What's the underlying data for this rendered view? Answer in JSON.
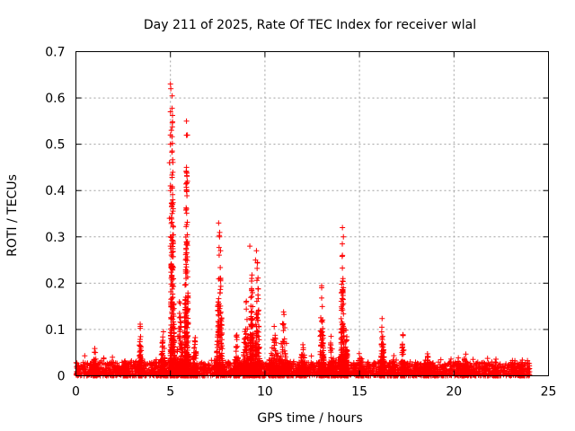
{
  "chart_data": {
    "type": "scatter",
    "title": "Day 211 of 2025, Rate Of TEC Index for receiver wlal",
    "xlabel": "GPS time / hours",
    "ylabel": "ROTI / TECUs",
    "xlim": [
      0,
      25
    ],
    "ylim": [
      0,
      0.7
    ],
    "xticks": [
      0,
      5,
      10,
      15,
      20,
      25
    ],
    "xtick_labels": [
      "0",
      "5",
      "10",
      "15",
      "20",
      "25"
    ],
    "yticks": [
      0,
      0.1,
      0.2,
      0.3,
      0.4,
      0.5,
      0.6,
      0.7
    ],
    "ytick_labels": [
      "0",
      "0.1",
      "0.2",
      "0.3",
      "0.4",
      "0.5",
      "0.6",
      "0.7"
    ],
    "grid": true,
    "marker": "+",
    "marker_color": "#ff0000",
    "baseline_noise": {
      "x_range": [
        0,
        24
      ],
      "y_range": [
        0,
        0.03
      ]
    },
    "bursts": [
      {
        "x": 1.0,
        "width": 0.12,
        "peak": 0.07
      },
      {
        "x": 2.6,
        "width": 0.1,
        "peak": 0.05
      },
      {
        "x": 3.4,
        "width": 0.1,
        "peak": 0.12
      },
      {
        "x": 4.6,
        "width": 0.15,
        "peak": 0.12
      },
      {
        "x": 5.1,
        "width": 0.12,
        "peak": 0.64
      },
      {
        "x": 5.5,
        "width": 0.2,
        "peak": 0.2
      },
      {
        "x": 5.85,
        "width": 0.12,
        "peak": 0.55
      },
      {
        "x": 6.3,
        "width": 0.15,
        "peak": 0.1
      },
      {
        "x": 7.6,
        "width": 0.18,
        "peak": 0.33
      },
      {
        "x": 8.5,
        "width": 0.15,
        "peak": 0.1
      },
      {
        "x": 9.0,
        "width": 0.18,
        "peak": 0.18
      },
      {
        "x": 9.3,
        "width": 0.12,
        "peak": 0.28
      },
      {
        "x": 9.6,
        "width": 0.15,
        "peak": 0.27
      },
      {
        "x": 10.5,
        "width": 0.3,
        "peak": 0.12
      },
      {
        "x": 11.0,
        "width": 0.3,
        "peak": 0.15
      },
      {
        "x": 12.0,
        "width": 0.2,
        "peak": 0.09
      },
      {
        "x": 13.0,
        "width": 0.15,
        "peak": 0.2
      },
      {
        "x": 13.5,
        "width": 0.2,
        "peak": 0.09
      },
      {
        "x": 14.1,
        "width": 0.12,
        "peak": 0.32
      },
      {
        "x": 14.3,
        "width": 0.1,
        "peak": 0.14
      },
      {
        "x": 15.0,
        "width": 0.2,
        "peak": 0.06
      },
      {
        "x": 16.2,
        "width": 0.15,
        "peak": 0.13
      },
      {
        "x": 16.8,
        "width": 0.15,
        "peak": 0.05
      },
      {
        "x": 17.3,
        "width": 0.12,
        "peak": 0.1
      },
      {
        "x": 18.6,
        "width": 0.2,
        "peak": 0.05
      },
      {
        "x": 20.6,
        "width": 0.15,
        "peak": 0.06
      },
      {
        "x": 22.2,
        "width": 0.15,
        "peak": 0.05
      },
      {
        "x": 23.6,
        "width": 0.15,
        "peak": 0.04
      }
    ],
    "outliers": [
      {
        "x": 5.0,
        "y": 0.63
      },
      {
        "x": 5.02,
        "y": 0.62
      },
      {
        "x": 5.0,
        "y": 0.57
      },
      {
        "x": 5.05,
        "y": 0.53
      },
      {
        "x": 5.0,
        "y": 0.52
      },
      {
        "x": 5.0,
        "y": 0.5
      },
      {
        "x": 4.95,
        "y": 0.46
      },
      {
        "x": 5.0,
        "y": 0.41
      },
      {
        "x": 5.0,
        "y": 0.4
      },
      {
        "x": 4.95,
        "y": 0.34
      },
      {
        "x": 5.0,
        "y": 0.3
      },
      {
        "x": 5.0,
        "y": 0.28
      },
      {
        "x": 5.85,
        "y": 0.55
      },
      {
        "x": 5.9,
        "y": 0.52
      },
      {
        "x": 5.85,
        "y": 0.45
      },
      {
        "x": 5.9,
        "y": 0.42
      },
      {
        "x": 5.85,
        "y": 0.4
      },
      {
        "x": 5.85,
        "y": 0.36
      },
      {
        "x": 5.9,
        "y": 0.29
      },
      {
        "x": 7.55,
        "y": 0.33
      },
      {
        "x": 7.6,
        "y": 0.3
      },
      {
        "x": 7.65,
        "y": 0.27
      },
      {
        "x": 9.2,
        "y": 0.28
      },
      {
        "x": 9.55,
        "y": 0.27
      },
      {
        "x": 9.5,
        "y": 0.25
      },
      {
        "x": 14.1,
        "y": 0.32
      },
      {
        "x": 14.15,
        "y": 0.3
      },
      {
        "x": 14.1,
        "y": 0.26
      },
      {
        "x": 14.15,
        "y": 0.19
      },
      {
        "x": 13.0,
        "y": 0.19
      }
    ]
  }
}
